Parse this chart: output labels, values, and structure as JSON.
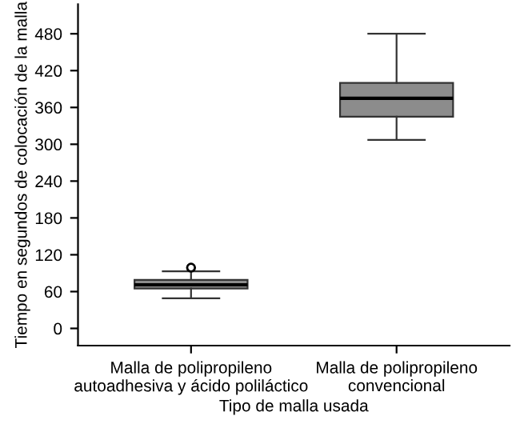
{
  "chart_data": {
    "type": "box",
    "xlabel": "Tipo de malla usada",
    "ylabel": "Tiempo en segundos de colocación de la malla",
    "categories": [
      "Malla de polipropileno\nautoadhesiva y ácido poliláctico",
      "Malla de polipropileno\nconvencional"
    ],
    "color": "#8c8c8c",
    "boxes": [
      {
        "low": 49,
        "q1": 65,
        "median": 71,
        "q3": 79,
        "high": 93,
        "outliers": [
          99
        ]
      },
      {
        "low": 307,
        "q1": 345,
        "median": 375,
        "q3": 400,
        "high": 480
      }
    ],
    "ylim": [
      -28,
      528
    ],
    "yticks": [
      0,
      60,
      120,
      180,
      240,
      300,
      360,
      420,
      480
    ],
    "grid": false
  }
}
